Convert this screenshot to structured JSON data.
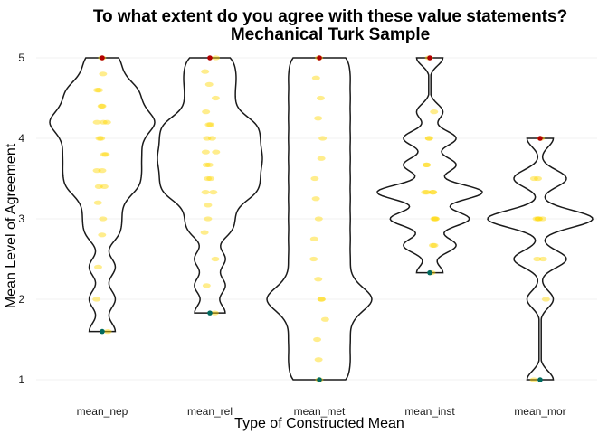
{
  "chart_data": {
    "type": "violin",
    "title": "To what extent do you agree with these value statements?",
    "subtitle": "Mechanical Turk Sample",
    "xlabel": "Type of Constructed Mean",
    "ylabel": "Mean Level of Agreement",
    "ylim": [
      1,
      5
    ],
    "yticks": [
      1,
      2,
      3,
      4,
      5
    ],
    "categories": [
      "mean_nep",
      "mean_rel",
      "mean_met",
      "mean_inst",
      "mean_mor"
    ],
    "series": [
      {
        "category": "mean_nep",
        "min": 1.6,
        "max": 5.0,
        "points": [
          5.0,
          4.8,
          4.6,
          4.6,
          4.4,
          4.4,
          4.2,
          4.2,
          4.2,
          4.0,
          4.0,
          3.8,
          3.8,
          3.6,
          3.6,
          3.4,
          3.4,
          3.2,
          3.0,
          2.8,
          2.4,
          2.0,
          1.6
        ]
      },
      {
        "category": "mean_rel",
        "min": 1.83,
        "max": 5.0,
        "points": [
          5.0,
          4.83,
          4.67,
          4.5,
          4.33,
          4.17,
          4.17,
          4.0,
          4.0,
          3.83,
          3.83,
          3.67,
          3.67,
          3.5,
          3.5,
          3.33,
          3.33,
          3.17,
          3.0,
          2.83,
          2.5,
          2.17,
          1.83
        ]
      },
      {
        "category": "mean_met",
        "min": 1.0,
        "max": 5.0,
        "points": [
          5.0,
          4.75,
          4.5,
          4.25,
          4.0,
          3.75,
          3.5,
          3.25,
          3.0,
          2.75,
          2.5,
          2.25,
          2.0,
          2.0,
          1.75,
          1.5,
          1.25,
          1.0
        ]
      },
      {
        "category": "mean_inst",
        "min": 2.33,
        "max": 5.0,
        "points": [
          5.0,
          4.33,
          4.0,
          4.0,
          3.67,
          3.67,
          3.33,
          3.33,
          3.33,
          3.33,
          3.0,
          3.0,
          3.0,
          2.67,
          2.67,
          2.33
        ]
      },
      {
        "category": "mean_mor",
        "min": 1.0,
        "max": 4.0,
        "points": [
          4.0,
          3.5,
          3.5,
          3.0,
          3.0,
          3.0,
          3.0,
          2.5,
          2.5,
          2.0,
          1.0
        ]
      }
    ],
    "colors": {
      "violin_outline": "#1a1a1a",
      "jitter_points": "#ffd700",
      "max_point": "#b30000",
      "min_point": "#006b5f"
    },
    "grid": false,
    "legend": "none"
  }
}
